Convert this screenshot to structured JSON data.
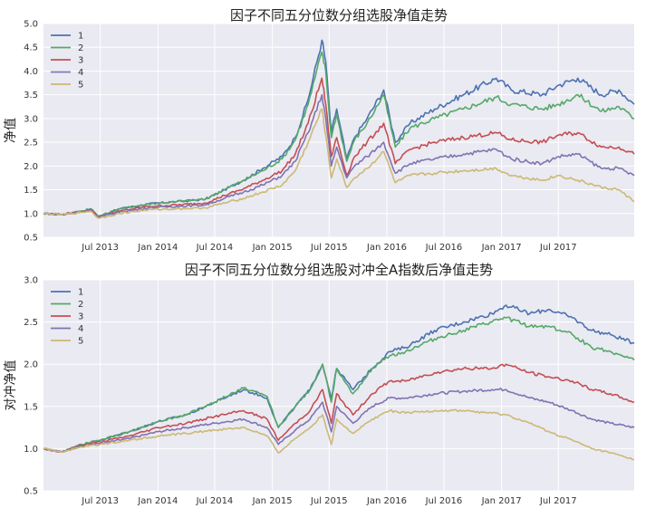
{
  "chart_data": [
    {
      "type": "line",
      "title": "因子不同五分位数分组选股净值走势",
      "ylabel": "净值",
      "xlabel": "",
      "ylim": [
        0.5,
        5.0
      ],
      "yticks": [
        "0.5",
        "1.0",
        "1.5",
        "2.0",
        "2.5",
        "3.0",
        "3.5",
        "4.0",
        "4.5",
        "5.0"
      ],
      "xlim": [
        "2013-01-01",
        "2018-02-28"
      ],
      "xticks": [
        {
          "date": "2013-07-01",
          "label": "Jul 2013"
        },
        {
          "date": "2014-01-01",
          "label": "Jan 2014"
        },
        {
          "date": "2014-07-01",
          "label": "Jul 2014"
        },
        {
          "date": "2015-01-01",
          "label": "Jan 2015"
        },
        {
          "date": "2015-07-01",
          "label": "Jul 2015"
        },
        {
          "date": "2016-01-01",
          "label": "Jan 2016"
        },
        {
          "date": "2016-07-01",
          "label": "Jul 2016"
        },
        {
          "date": "2017-01-01",
          "label": "Jan 2017"
        },
        {
          "date": "2017-07-01",
          "label": "Jul 2017"
        }
      ],
      "grid": true,
      "legend_position": "top-left",
      "dates": [
        "2013-01-01",
        "2013-03-01",
        "2013-05-01",
        "2013-06-01",
        "2013-06-25",
        "2013-09-01",
        "2013-12-01",
        "2014-03-01",
        "2014-06-01",
        "2014-08-01",
        "2014-10-01",
        "2014-12-01",
        "2015-02-01",
        "2015-03-15",
        "2015-04-25",
        "2015-06-08",
        "2015-06-20",
        "2015-07-08",
        "2015-07-25",
        "2015-08-26",
        "2015-09-20",
        "2015-10-30",
        "2015-12-22",
        "2016-01-28",
        "2016-03-15",
        "2016-06-01",
        "2016-09-01",
        "2016-12-15",
        "2017-02-01",
        "2017-05-10",
        "2017-07-01",
        "2017-09-01",
        "2017-11-15",
        "2018-01-10",
        "2018-02-28"
      ],
      "series": [
        {
          "name": "1",
          "color": "#4c72b0",
          "values": [
            1.0,
            0.98,
            1.05,
            1.1,
            0.94,
            1.1,
            1.2,
            1.25,
            1.3,
            1.5,
            1.7,
            1.95,
            2.2,
            2.6,
            3.4,
            4.65,
            4.2,
            2.7,
            3.2,
            2.15,
            2.6,
            3.0,
            3.6,
            2.5,
            2.9,
            3.2,
            3.5,
            3.85,
            3.6,
            3.5,
            3.7,
            3.85,
            3.5,
            3.6,
            3.3
          ]
        },
        {
          "name": "2",
          "color": "#55a868",
          "values": [
            1.0,
            0.98,
            1.05,
            1.1,
            0.94,
            1.1,
            1.2,
            1.25,
            1.3,
            1.5,
            1.7,
            1.9,
            2.15,
            2.55,
            3.3,
            4.4,
            4.0,
            2.6,
            3.1,
            2.1,
            2.55,
            2.9,
            3.5,
            2.4,
            2.8,
            3.0,
            3.2,
            3.45,
            3.3,
            3.2,
            3.3,
            3.5,
            3.15,
            3.25,
            3.0
          ]
        },
        {
          "name": "3",
          "color": "#c44e52",
          "values": [
            1.0,
            0.98,
            1.04,
            1.08,
            0.93,
            1.05,
            1.15,
            1.18,
            1.22,
            1.38,
            1.52,
            1.7,
            1.9,
            2.25,
            2.9,
            3.85,
            3.3,
            2.2,
            2.6,
            1.8,
            2.2,
            2.5,
            2.9,
            2.05,
            2.35,
            2.5,
            2.6,
            2.7,
            2.55,
            2.5,
            2.65,
            2.7,
            2.4,
            2.4,
            2.25
          ]
        },
        {
          "name": "4",
          "color": "#8172b2",
          "values": [
            1.0,
            0.98,
            1.03,
            1.06,
            0.92,
            1.03,
            1.12,
            1.15,
            1.18,
            1.32,
            1.45,
            1.6,
            1.8,
            2.1,
            2.7,
            3.5,
            3.0,
            2.0,
            2.4,
            1.75,
            2.0,
            2.2,
            2.5,
            1.85,
            2.05,
            2.15,
            2.25,
            2.35,
            2.15,
            2.05,
            2.2,
            2.25,
            1.95,
            1.95,
            1.8
          ]
        },
        {
          "name": "5",
          "color": "#ccb974",
          "values": [
            1.0,
            0.98,
            1.02,
            1.05,
            0.9,
            1.0,
            1.08,
            1.1,
            1.12,
            1.22,
            1.32,
            1.45,
            1.6,
            1.9,
            2.5,
            3.2,
            2.65,
            1.75,
            2.15,
            1.55,
            1.75,
            1.95,
            2.3,
            1.65,
            1.8,
            1.85,
            1.9,
            1.95,
            1.8,
            1.7,
            1.8,
            1.7,
            1.55,
            1.5,
            1.25
          ]
        }
      ]
    },
    {
      "type": "line",
      "title": "因子不同五分位数分组选股对冲全A指数后净值走势",
      "ylabel": "对冲净值",
      "xlabel": "",
      "ylim": [
        0.5,
        3.0
      ],
      "yticks": [
        "0.5",
        "1.0",
        "1.5",
        "2.0",
        "2.5",
        "3.0"
      ],
      "xlim": [
        "2013-01-01",
        "2018-02-28"
      ],
      "xticks": [
        {
          "date": "2013-07-01",
          "label": "Jul 2013"
        },
        {
          "date": "2014-01-01",
          "label": "Jan 2014"
        },
        {
          "date": "2014-07-01",
          "label": "Jul 2014"
        },
        {
          "date": "2015-01-01",
          "label": "Jan 2015"
        },
        {
          "date": "2015-07-01",
          "label": "Jul 2015"
        },
        {
          "date": "2016-01-01",
          "label": "Jan 2016"
        },
        {
          "date": "2016-07-01",
          "label": "Jul 2016"
        },
        {
          "date": "2017-01-01",
          "label": "Jan 2017"
        },
        {
          "date": "2017-07-01",
          "label": "Jul 2017"
        }
      ],
      "grid": true,
      "legend_position": "top-left",
      "dates": [
        "2013-01-01",
        "2013-03-01",
        "2013-05-01",
        "2013-07-01",
        "2013-10-01",
        "2014-01-01",
        "2014-04-01",
        "2014-07-01",
        "2014-10-01",
        "2014-12-15",
        "2015-01-20",
        "2015-03-15",
        "2015-05-01",
        "2015-06-10",
        "2015-07-08",
        "2015-07-25",
        "2015-09-15",
        "2015-11-15",
        "2016-01-10",
        "2016-03-01",
        "2016-06-01",
        "2016-09-01",
        "2016-12-01",
        "2017-01-15",
        "2017-04-01",
        "2017-06-01",
        "2017-08-15",
        "2017-10-15",
        "2017-12-15",
        "2018-02-28"
      ],
      "series": [
        {
          "name": "1",
          "color": "#4c72b0",
          "values": [
            1.0,
            0.96,
            1.05,
            1.1,
            1.2,
            1.32,
            1.4,
            1.55,
            1.7,
            1.6,
            1.25,
            1.5,
            1.7,
            2.0,
            1.6,
            1.95,
            1.7,
            1.95,
            2.15,
            2.2,
            2.4,
            2.5,
            2.6,
            2.7,
            2.6,
            2.65,
            2.55,
            2.4,
            2.35,
            2.25
          ]
        },
        {
          "name": "2",
          "color": "#55a868",
          "values": [
            1.0,
            0.96,
            1.05,
            1.1,
            1.2,
            1.32,
            1.4,
            1.55,
            1.72,
            1.62,
            1.25,
            1.5,
            1.7,
            2.0,
            1.55,
            1.95,
            1.65,
            1.95,
            2.1,
            2.15,
            2.3,
            2.4,
            2.5,
            2.55,
            2.45,
            2.45,
            2.35,
            2.2,
            2.15,
            2.05
          ]
        },
        {
          "name": "3",
          "color": "#c44e52",
          "values": [
            1.0,
            0.96,
            1.04,
            1.08,
            1.15,
            1.25,
            1.3,
            1.38,
            1.45,
            1.35,
            1.1,
            1.3,
            1.45,
            1.7,
            1.3,
            1.65,
            1.4,
            1.65,
            1.8,
            1.8,
            1.9,
            1.95,
            1.95,
            2.0,
            1.9,
            1.85,
            1.8,
            1.7,
            1.65,
            1.55
          ]
        },
        {
          "name": "4",
          "color": "#8172b2",
          "values": [
            1.0,
            0.96,
            1.03,
            1.06,
            1.12,
            1.2,
            1.25,
            1.3,
            1.35,
            1.25,
            1.05,
            1.22,
            1.35,
            1.55,
            1.2,
            1.5,
            1.3,
            1.5,
            1.6,
            1.6,
            1.65,
            1.68,
            1.7,
            1.7,
            1.6,
            1.55,
            1.45,
            1.35,
            1.3,
            1.25
          ]
        },
        {
          "name": "5",
          "color": "#ccb974",
          "values": [
            1.0,
            0.96,
            1.02,
            1.05,
            1.1,
            1.15,
            1.18,
            1.22,
            1.25,
            1.15,
            0.95,
            1.12,
            1.25,
            1.4,
            1.05,
            1.35,
            1.18,
            1.35,
            1.45,
            1.42,
            1.45,
            1.45,
            1.42,
            1.4,
            1.3,
            1.2,
            1.1,
            1.0,
            0.95,
            0.87
          ]
        }
      ]
    }
  ]
}
